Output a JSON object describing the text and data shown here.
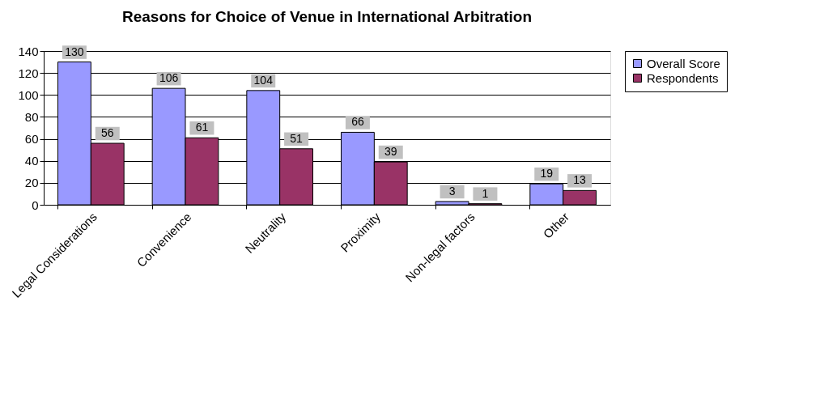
{
  "chart_data": {
    "type": "bar",
    "title": "Reasons for Choice of Venue in International Arbitration",
    "categories": [
      "Legal Considerations",
      "Convenience",
      "Neutrality",
      "Proximity",
      "Non-legal factors",
      "Other"
    ],
    "series": [
      {
        "name": "Overall Score",
        "color": "#9999ff",
        "values": [
          130,
          106,
          104,
          66,
          3,
          19
        ]
      },
      {
        "name": "Respondents",
        "color": "#993366",
        "values": [
          56,
          61,
          51,
          39,
          1,
          13
        ]
      }
    ],
    "ylim": [
      0,
      140
    ],
    "yticks": [
      0,
      20,
      40,
      60,
      80,
      100,
      120,
      140
    ],
    "grid": "y",
    "legend": "right",
    "data_labels": true
  }
}
